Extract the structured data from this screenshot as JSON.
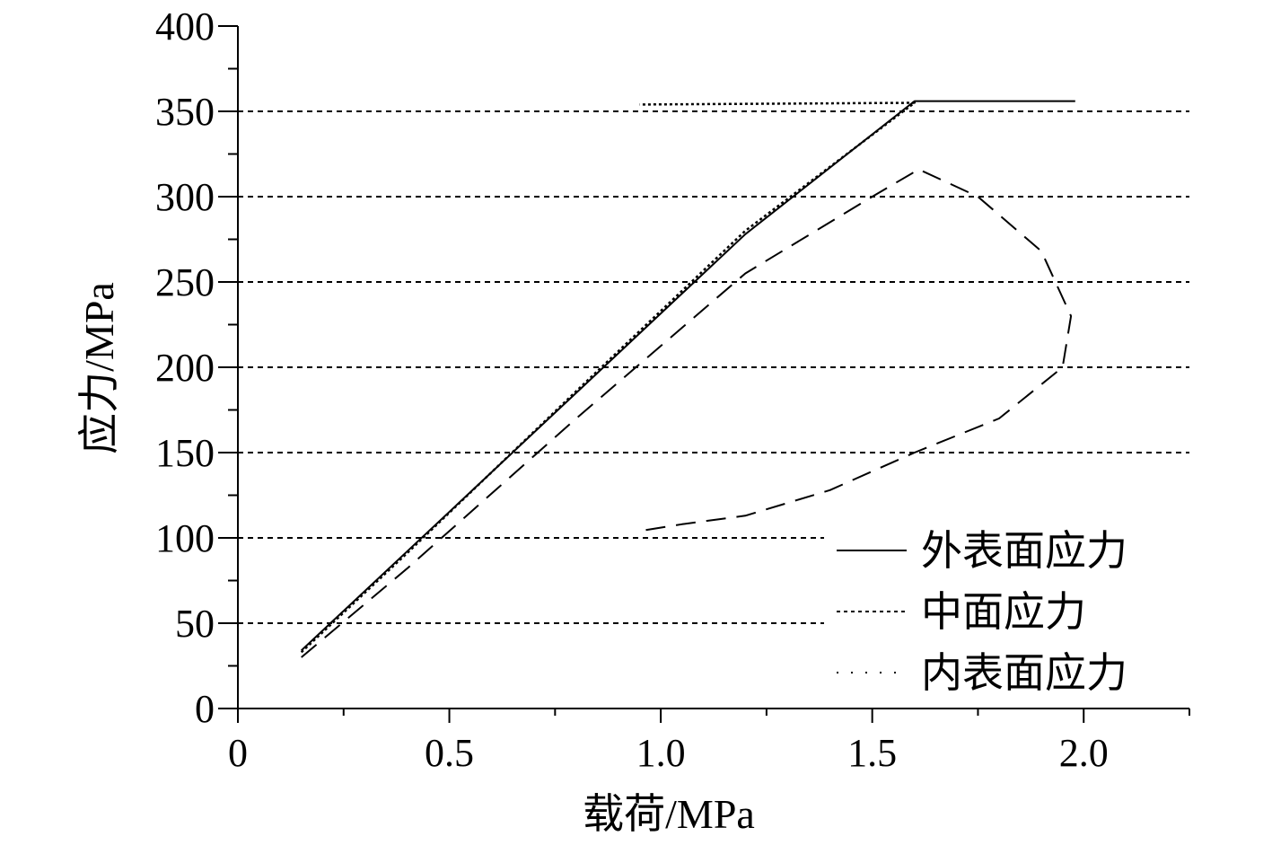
{
  "chart_data": {
    "type": "line",
    "title": "",
    "xlabel": "载荷/MPa",
    "ylabel": "应力/MPa",
    "xlim": [
      0,
      2.25
    ],
    "ylim": [
      0,
      400
    ],
    "x_ticks": [
      {
        "value": 0,
        "label": "0"
      },
      {
        "value": 0.5,
        "label": "0.5"
      },
      {
        "value": 1.0,
        "label": "1.0"
      },
      {
        "value": 1.5,
        "label": "1.5"
      },
      {
        "value": 2.0,
        "label": "2.0"
      }
    ],
    "y_ticks": [
      {
        "value": 0,
        "label": "0"
      },
      {
        "value": 50,
        "label": "50"
      },
      {
        "value": 100,
        "label": "100"
      },
      {
        "value": 150,
        "label": "150"
      },
      {
        "value": 200,
        "label": "200"
      },
      {
        "value": 250,
        "label": "250"
      },
      {
        "value": 300,
        "label": "300"
      },
      {
        "value": 350,
        "label": "350"
      },
      {
        "value": 400,
        "label": "400"
      }
    ],
    "grid": "horizontal dashed",
    "legend_position": "bottom-right",
    "series": [
      {
        "name": "外表面应力",
        "style": "solid",
        "x": [
          0.15,
          0.4,
          0.8,
          1.2,
          1.6,
          1.98
        ],
        "y": [
          34,
          92,
          185,
          278,
          356,
          356
        ]
      },
      {
        "name": "中面应力",
        "style": "dotted",
        "x": [
          0.15,
          0.4,
          0.8,
          1.2,
          1.6,
          0.95
        ],
        "y": [
          33,
          91,
          186,
          280,
          355,
          354
        ]
      },
      {
        "name": "内表面应力",
        "style": "dashed",
        "x": [
          0.15,
          0.4,
          0.8,
          1.2,
          1.5,
          1.61,
          1.75,
          1.9,
          1.97,
          1.95,
          1.8,
          1.6,
          1.4,
          1.2,
          1.05,
          0.95
        ],
        "y": [
          30,
          82,
          170,
          255,
          300,
          316,
          300,
          268,
          230,
          200,
          170,
          150,
          128,
          113,
          108,
          104
        ]
      }
    ],
    "colors": {
      "line": "#000000",
      "background": "#ffffff"
    }
  }
}
